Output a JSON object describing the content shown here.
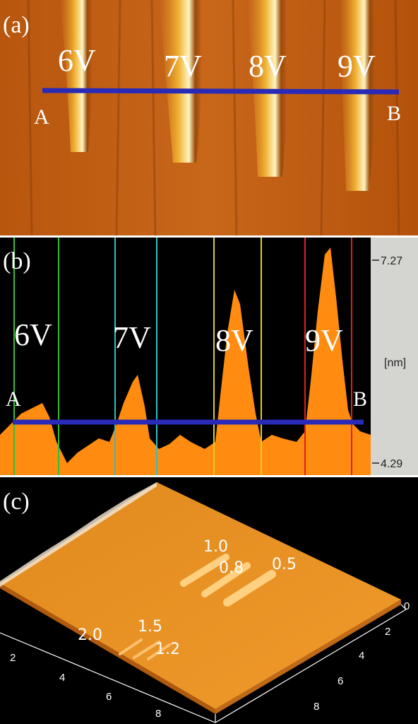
{
  "panels": [
    {
      "label": "(a)",
      "voltages": [
        "6V",
        "7V",
        "8V",
        "9V"
      ],
      "start": "A",
      "end": "B"
    },
    {
      "label": "(b)",
      "voltages": [
        "6V",
        "7V",
        "8V",
        "9V"
      ],
      "start": "A",
      "end": "B",
      "scale": {
        "top": "7.27",
        "unit": "[nm]",
        "bottom": "4.29"
      }
    },
    {
      "label": "(c)",
      "line_labels": [
        "1.0",
        "0.8",
        "0.5",
        "2.0",
        "1.5",
        "1.2"
      ],
      "left_axis_ticks": [
        "2",
        "4",
        "6",
        "8"
      ],
      "right_axis_ticks": [
        "0",
        "2",
        "4",
        "6",
        "8"
      ]
    }
  ]
}
